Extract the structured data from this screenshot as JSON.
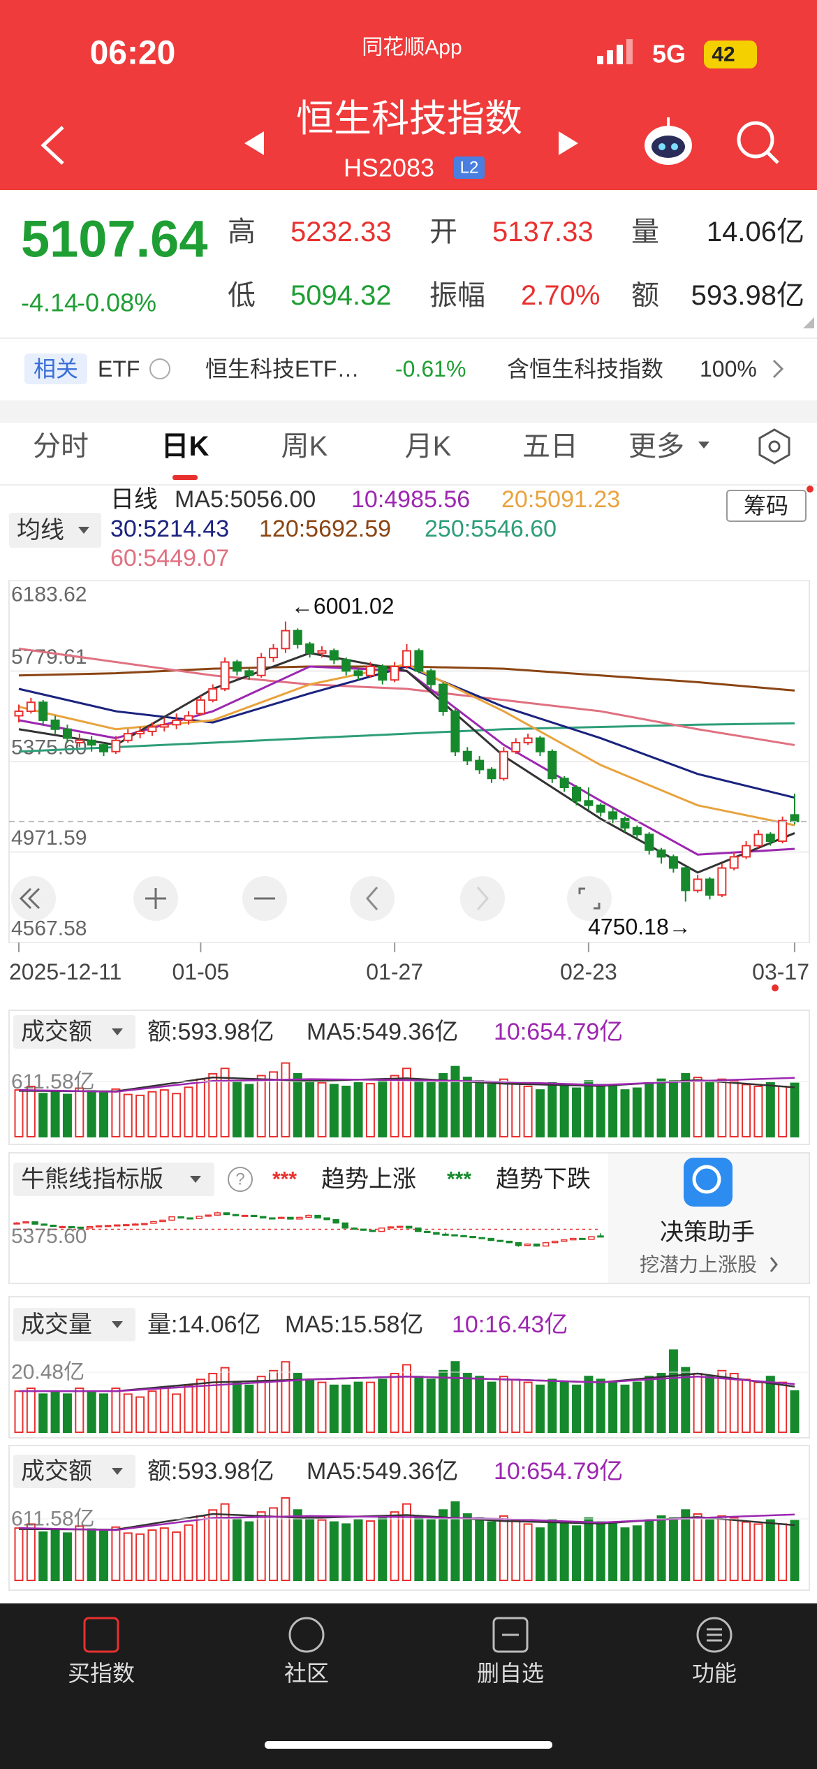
{
  "status": {
    "time": "06:20",
    "app": "同花顺App",
    "network": "5G",
    "battery": "42"
  },
  "header": {
    "title": "恒生科技指数",
    "code": "HS2083",
    "badge": "L2"
  },
  "quote": {
    "price": "5107.64",
    "change": "-4.14",
    "change_pct": "-0.08%",
    "stats": [
      {
        "label": "高",
        "value": "5232.33"
      },
      {
        "label": "开",
        "value": "5137.33"
      },
      {
        "label": "量",
        "value": "14.06亿"
      },
      {
        "label": "低",
        "value": "5094.32"
      },
      {
        "label": "振幅",
        "value": "2.70%"
      },
      {
        "label": "额",
        "value": "593.98亿"
      }
    ]
  },
  "related": {
    "tag": "相关",
    "etf_label": "ETF",
    "etf_name": "恒生科技ETF…",
    "etf_change": "-0.61%",
    "index_text": "含恒生科技指数",
    "index_pct": "100%"
  },
  "tabs": [
    "分时",
    "日K",
    "周K",
    "月K",
    "五日",
    "更多"
  ],
  "chip_button": "筹码",
  "chart_data": [
    {
      "type": "candlestick",
      "selector": "均线",
      "period": "日线",
      "legend": [
        {
          "text": "MA5:5056.00",
          "color": "#333333"
        },
        {
          "text": "10:4985.56",
          "color": "#9c27b0"
        },
        {
          "text": "20:5091.23",
          "color": "#e8a33d"
        },
        {
          "text": "30:5214.43",
          "color": "#1a237e"
        },
        {
          "text": "120:5692.59",
          "color": "#8b4513"
        },
        {
          "text": "250:5546.60",
          "color": "#2e9e7a"
        },
        {
          "text": "60:5449.07",
          "color": "#e07080"
        }
      ],
      "categories": [
        "2025-12-11",
        null,
        null,
        null,
        null,
        null,
        null,
        null,
        null,
        null,
        null,
        null,
        null,
        null,
        null,
        "01-05",
        null,
        null,
        null,
        null,
        null,
        null,
        null,
        null,
        null,
        null,
        null,
        null,
        null,
        null,
        null,
        "01-27",
        null,
        null,
        null,
        null,
        null,
        null,
        null,
        null,
        null,
        null,
        null,
        null,
        null,
        null,
        null,
        "02-23",
        null,
        null,
        null,
        null,
        null,
        null,
        null,
        null,
        null,
        null,
        null,
        null,
        null,
        null,
        null,
        null,
        "03-17"
      ],
      "candles": [
        [
          5580,
          5630,
          5550,
          5600
        ],
        [
          5600,
          5660,
          5590,
          5640
        ],
        [
          5640,
          5650,
          5540,
          5560
        ],
        [
          5560,
          5580,
          5500,
          5520
        ],
        [
          5520,
          5540,
          5460,
          5480
        ],
        [
          5460,
          5500,
          5440,
          5470
        ],
        [
          5470,
          5490,
          5420,
          5450
        ],
        [
          5450,
          5460,
          5400,
          5420
        ],
        [
          5420,
          5490,
          5410,
          5470
        ],
        [
          5470,
          5520,
          5460,
          5500
        ],
        [
          5500,
          5530,
          5480,
          5510
        ],
        [
          5510,
          5550,
          5490,
          5530
        ],
        [
          5530,
          5570,
          5510,
          5540
        ],
        [
          5540,
          5590,
          5520,
          5560
        ],
        [
          5560,
          5600,
          5540,
          5580
        ],
        [
          5590,
          5670,
          5580,
          5650
        ],
        [
          5650,
          5720,
          5640,
          5700
        ],
        [
          5700,
          5840,
          5690,
          5820
        ],
        [
          5820,
          5830,
          5760,
          5780
        ],
        [
          5780,
          5790,
          5740,
          5760
        ],
        [
          5760,
          5860,
          5750,
          5840
        ],
        [
          5840,
          5900,
          5820,
          5880
        ],
        [
          5880,
          6001.02,
          5860,
          5960
        ],
        [
          5960,
          5970,
          5880,
          5900
        ],
        [
          5900,
          5910,
          5840,
          5860
        ],
        [
          5860,
          5890,
          5840,
          5870
        ],
        [
          5870,
          5880,
          5810,
          5830
        ],
        [
          5830,
          5840,
          5760,
          5780
        ],
        [
          5780,
          5790,
          5740,
          5760
        ],
        [
          5760,
          5820,
          5750,
          5800
        ],
        [
          5800,
          5810,
          5720,
          5740
        ],
        [
          5740,
          5820,
          5730,
          5800
        ],
        [
          5800,
          5900,
          5790,
          5870
        ],
        [
          5870,
          5880,
          5770,
          5780
        ],
        [
          5780,
          5790,
          5700,
          5720
        ],
        [
          5720,
          5730,
          5580,
          5600
        ],
        [
          5600,
          5610,
          5400,
          5420
        ],
        [
          5420,
          5440,
          5360,
          5380
        ],
        [
          5380,
          5400,
          5320,
          5340
        ],
        [
          5340,
          5350,
          5280,
          5300
        ],
        [
          5300,
          5440,
          5290,
          5420
        ],
        [
          5420,
          5480,
          5410,
          5460
        ],
        [
          5460,
          5500,
          5450,
          5480
        ],
        [
          5480,
          5490,
          5400,
          5420
        ],
        [
          5420,
          5430,
          5280,
          5300
        ],
        [
          5300,
          5310,
          5240,
          5260
        ],
        [
          5260,
          5270,
          5180,
          5200
        ],
        [
          5200,
          5260,
          5160,
          5180
        ],
        [
          5180,
          5190,
          5130,
          5150
        ],
        [
          5150,
          5170,
          5100,
          5120
        ],
        [
          5120,
          5130,
          5060,
          5080
        ],
        [
          5080,
          5090,
          5030,
          5050
        ],
        [
          5050,
          5060,
          4960,
          4980
        ],
        [
          4980,
          4990,
          4920,
          4950
        ],
        [
          4950,
          4960,
          4880,
          4900
        ],
        [
          4900,
          4910,
          4750.18,
          4800
        ],
        [
          4800,
          4870,
          4790,
          4850
        ],
        [
          4850,
          4860,
          4760,
          4780
        ],
        [
          4780,
          4920,
          4770,
          4900
        ],
        [
          4900,
          4970,
          4890,
          4950
        ],
        [
          4950,
          5020,
          4940,
          5000
        ],
        [
          5000,
          5070,
          4990,
          5050
        ],
        [
          5050,
          5060,
          5000,
          5020
        ],
        [
          5020,
          5130,
          5010,
          5111.78
        ],
        [
          5137.33,
          5232.33,
          5094.32,
          5107.64
        ]
      ],
      "ylim": [
        4567.58,
        6183.62
      ],
      "yticks": [
        6183.62,
        5779.61,
        {
          "value": 5375.6,
          "label": "5375.60"
        },
        4971.59,
        4567.58
      ],
      "grid": true,
      "up_color": "#e8312f",
      "down_color": "#16892c",
      "annotations": {
        "high": "←6001.02",
        "low": "4750.18→"
      },
      "ma_lines": [
        {
          "color": "#2e9e7a",
          "x": [
            0,
            8,
            16,
            24,
            32,
            40,
            48,
            56,
            64
          ],
          "values": [
            5420,
            5440,
            5460,
            5480,
            5500,
            5520,
            5530,
            5540,
            5546.6
          ]
        },
        {
          "color": "#8b4513",
          "x": [
            0,
            8,
            16,
            24,
            32,
            40,
            48,
            56,
            64
          ],
          "values": [
            5760,
            5770,
            5790,
            5800,
            5800,
            5790,
            5760,
            5730,
            5692.59
          ]
        },
        {
          "color": "#e07080",
          "x": [
            0,
            8,
            16,
            24,
            32,
            40,
            48,
            56,
            64
          ],
          "values": [
            5880,
            5820,
            5760,
            5720,
            5700,
            5650,
            5600,
            5520,
            5449.07
          ]
        },
        {
          "color": "#1a237e",
          "x": [
            0,
            8,
            16,
            24,
            32,
            40,
            48,
            56,
            64
          ],
          "values": [
            5700,
            5600,
            5550,
            5680,
            5800,
            5620,
            5480,
            5320,
            5214.43
          ]
        },
        {
          "color": "#e8a33d",
          "x": [
            0,
            8,
            16,
            24,
            32,
            40,
            48,
            56,
            64
          ],
          "values": [
            5620,
            5520,
            5560,
            5720,
            5810,
            5600,
            5360,
            5180,
            5091.23
          ]
        },
        {
          "color": "#9c27b0",
          "x": [
            0,
            8,
            16,
            24,
            32,
            40,
            48,
            56,
            64
          ],
          "values": [
            5560,
            5480,
            5600,
            5800,
            5780,
            5450,
            5200,
            4960,
            4985.56
          ]
        },
        {
          "color": "#333333",
          "x": [
            0,
            8,
            16,
            24,
            32,
            40,
            48,
            56,
            64
          ],
          "values": [
            5520,
            5450,
            5700,
            5860,
            5780,
            5400,
            5120,
            4880,
            5056
          ]
        }
      ]
    },
    {
      "type": "bar",
      "selector": "成交额",
      "legend": [
        {
          "text": "额:593.98亿",
          "color": "#333333"
        },
        {
          "text": "MA5:549.36亿",
          "color": "#333333"
        },
        {
          "text": "10:654.79亿",
          "color": "#9c27b0"
        }
      ],
      "values": [
        520,
        560,
        480,
        500,
        470,
        540,
        510,
        490,
        530,
        470,
        460,
        500,
        520,
        480,
        550,
        640,
        700,
        760,
        620,
        580,
        680,
        720,
        820,
        700,
        640,
        600,
        580,
        560,
        600,
        590,
        620,
        680,
        760,
        640,
        600,
        700,
        780,
        660,
        620,
        580,
        640,
        600,
        560,
        520,
        600,
        580,
        540,
        620,
        580,
        560,
        520,
        540,
        600,
        640,
        620,
        700,
        660,
        600,
        640,
        620,
        580,
        560,
        600,
        560,
        593.98
      ],
      "ylim": [
        0,
        917.37
      ],
      "yticks": [
        {
          "value": 611.58,
          "label": "611.58亿"
        }
      ],
      "ma_lines": [
        {
          "color": "#333333",
          "x": [
            0,
            8,
            16,
            24,
            32,
            40,
            48,
            56,
            64
          ],
          "values": [
            510,
            505,
            660,
            620,
            650,
            590,
            565,
            630,
            549.36
          ]
        },
        {
          "color": "#9c27b0",
          "x": [
            0,
            8,
            16,
            24,
            32,
            40,
            48,
            56,
            64
          ],
          "values": [
            520,
            500,
            620,
            640,
            630,
            610,
            575,
            620,
            654.79
          ]
        }
      ]
    },
    {
      "type": "bar",
      "selector": "成交量",
      "legend": [
        {
          "text": "量:14.06亿",
          "color": "#333333"
        },
        {
          "text": "MA5:15.58亿",
          "color": "#333333"
        },
        {
          "text": "10:16.43亿",
          "color": "#9c27b0"
        }
      ],
      "values": [
        14,
        15,
        13,
        14,
        13,
        15,
        14,
        13,
        15,
        13,
        12,
        14,
        15,
        13,
        16,
        18,
        20,
        22,
        17,
        16,
        19,
        21,
        24,
        20,
        18,
        17,
        16,
        16,
        17,
        17,
        18,
        20,
        23,
        19,
        18,
        21,
        24,
        20,
        19,
        17,
        19,
        18,
        17,
        16,
        18,
        17,
        16,
        19,
        18,
        17,
        16,
        17,
        19,
        20,
        28,
        22,
        20,
        19,
        21,
        20,
        18,
        17,
        19,
        17,
        14.06
      ],
      "ylim": [
        0,
        30.72
      ],
      "yticks": [
        {
          "value": 20.48,
          "label": "20.48亿"
        }
      ],
      "ma_lines": [
        {
          "color": "#333333",
          "x": [
            0,
            8,
            16,
            24,
            32,
            40,
            48,
            56,
            64
          ],
          "values": [
            14,
            14,
            17,
            18,
            19,
            18,
            17,
            20,
            15.58
          ]
        },
        {
          "color": "#9c27b0",
          "x": [
            0,
            8,
            16,
            24,
            32,
            40,
            48,
            56,
            64
          ],
          "values": [
            14,
            14,
            16,
            18,
            19,
            18,
            17,
            19,
            16.43
          ]
        }
      ]
    }
  ],
  "bull_bear": {
    "selector": "牛熊线指标版",
    "help": "?",
    "up_marker": "***",
    "up_label": "趋势上涨",
    "down_marker": "***",
    "down_label": "趋势下跌",
    "ylim": [
      4567.58,
      6183.62
    ],
    "yticks": [
      {
        "value": 5375.6,
        "label": "5375.60"
      }
    ],
    "assistant_title": "决策助手",
    "assistant_sub": "挖潜力上涨股"
  },
  "nav": [
    "买指数",
    "社区",
    "删自选",
    "功能"
  ]
}
